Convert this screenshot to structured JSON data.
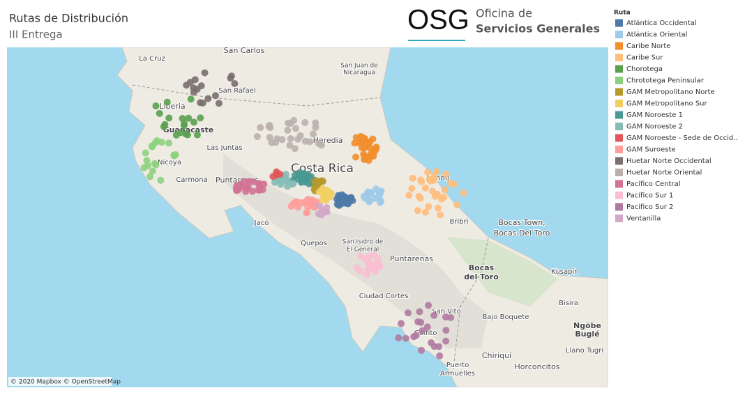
{
  "header": {
    "title": "Rutas de Distribución",
    "subtitle": "III Entrega"
  },
  "logo": {
    "acronym": "OSG",
    "line1": "Oficina de",
    "line2": "Servicios Generales"
  },
  "legend": {
    "title": "Ruta",
    "items": [
      {
        "name": "Atlántica Occidental",
        "color": "#4e79a7"
      },
      {
        "name": "Atlántica Oriental",
        "color": "#a0cbe8"
      },
      {
        "name": "Caribe Norte",
        "color": "#f28e2b"
      },
      {
        "name": "Caribe Sur",
        "color": "#ffbe7d"
      },
      {
        "name": "Chorotega",
        "color": "#59a14f"
      },
      {
        "name": "Chrototega Peninsular",
        "color": "#8cd17d"
      },
      {
        "name": "GAM Metropolitano Norte",
        "color": "#b6992d"
      },
      {
        "name": "GAM Metropolitano Sur",
        "color": "#f1ce63"
      },
      {
        "name": "GAM Noroeste 1",
        "color": "#499894"
      },
      {
        "name": "GAM Noroeste 2",
        "color": "#86bcb6"
      },
      {
        "name": "GAM Noroeste - Sede de Occid..",
        "color": "#e15759"
      },
      {
        "name": "GAM Suroeste",
        "color": "#ff9d9a"
      },
      {
        "name": "Huetar Norte Occidental",
        "color": "#79706e"
      },
      {
        "name": "Huetar Norte Oriental",
        "color": "#bab0ac"
      },
      {
        "name": "Pacífico Central",
        "color": "#d37295"
      },
      {
        "name": "Pacífico Sur 1",
        "color": "#fabfd2"
      },
      {
        "name": "Pacífico Sur 2",
        "color": "#b07aa1"
      },
      {
        "name": "Ventanilla",
        "color": "#d4a6c8"
      }
    ]
  },
  "map": {
    "labels": [
      "San Carlos",
      "La Cruz",
      "San Juan de",
      "Nicaragua",
      "San Rafael",
      "Liberia",
      "Guanacaste",
      "Las Juntas",
      "Nicoya",
      "Carmona",
      "Puntarenas",
      "Costa Rica",
      "Heredia",
      "Limón",
      "Jacó",
      "Quepos",
      "San Isidro de",
      "El General",
      "Puntarenas",
      "Ciudad Cortés",
      "San Vito",
      "Golfito",
      "Bajo Boquete",
      "Chiriquí",
      "Puerto",
      "Armuelles",
      "Horconcitos",
      "Bocas Town,",
      "Bocas Del Toro",
      "Bocas",
      "del Toro",
      "Kusapín",
      "Bisira",
      "Ngöbe",
      "Buglé",
      "Llano Tugri",
      "Bribri"
    ],
    "attribution": "© 2020 Mapbox © OpenStreetMap"
  }
}
